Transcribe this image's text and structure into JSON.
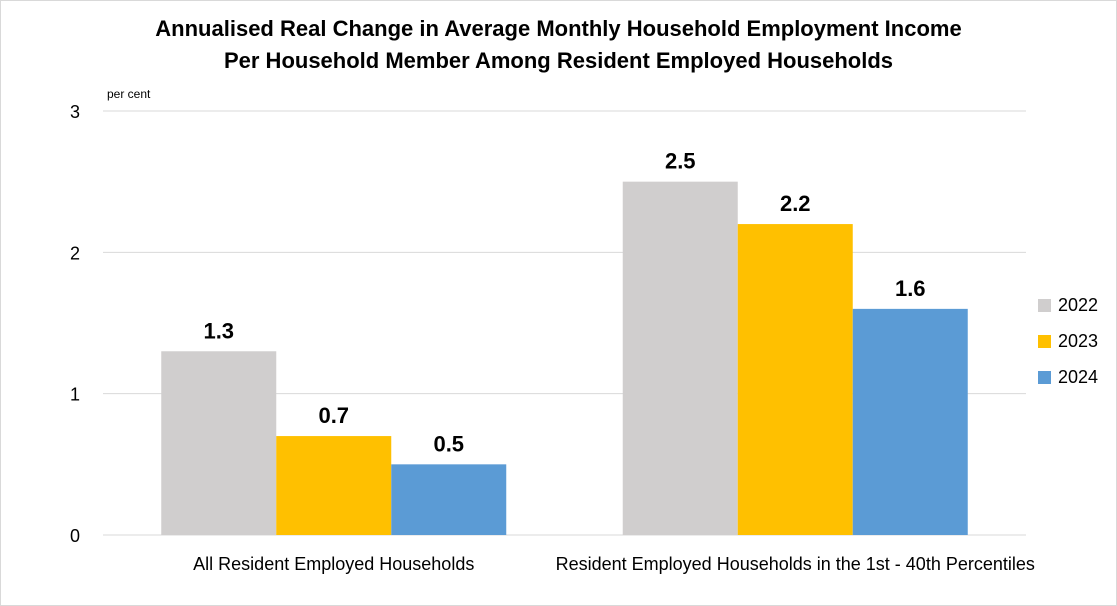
{
  "chart_data": {
    "type": "bar",
    "title_line1": "Annualised Real Change in Average Monthly Household Employment Income",
    "title_line2": "Per Household Member Among Resident Employed Households",
    "ylabel": "per cent",
    "xlabel": "",
    "ylim": [
      0,
      3
    ],
    "yticks": [
      "0",
      "1",
      "2",
      "3"
    ],
    "grid": true,
    "legend_position": "right",
    "categories": [
      "All Resident Employed Households",
      "Resident Employed Households in the 1st - 40th Percentiles"
    ],
    "series": [
      {
        "name": "2022",
        "color": "#d0cece",
        "values": [
          1.3,
          2.5
        ]
      },
      {
        "name": "2023",
        "color": "#ffc000",
        "values": [
          0.7,
          2.2
        ]
      },
      {
        "name": "2024",
        "color": "#5b9bd5",
        "values": [
          0.5,
          1.6
        ]
      }
    ]
  }
}
